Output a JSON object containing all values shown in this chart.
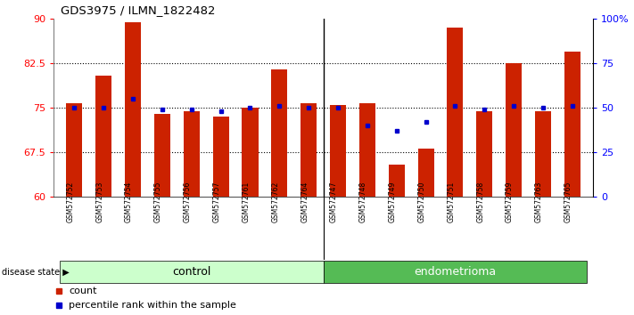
{
  "title": "GDS3975 / ILMN_1822482",
  "samples": [
    "GSM572752",
    "GSM572753",
    "GSM572754",
    "GSM572755",
    "GSM572756",
    "GSM572757",
    "GSM572761",
    "GSM572762",
    "GSM572764",
    "GSM572747",
    "GSM572748",
    "GSM572749",
    "GSM572750",
    "GSM572751",
    "GSM572758",
    "GSM572759",
    "GSM572763",
    "GSM572765"
  ],
  "bar_heights": [
    75.8,
    80.5,
    89.5,
    74.0,
    74.5,
    73.5,
    75.0,
    81.5,
    75.8,
    75.5,
    75.8,
    65.5,
    68.2,
    88.5,
    74.5,
    82.5,
    74.5,
    84.5
  ],
  "percentile_ranks_pct": [
    50,
    50,
    55,
    49,
    49,
    48,
    50,
    51,
    50,
    50,
    40,
    37,
    42,
    51,
    49,
    51,
    50,
    51
  ],
  "control_count": 9,
  "endometrioma_count": 9,
  "bar_color": "#cc2200",
  "dot_color": "#0000cc",
  "bar_bottom": 60,
  "ylim_left": [
    60,
    90
  ],
  "ylim_right": [
    0,
    100
  ],
  "yticks_left": [
    60,
    67.5,
    75,
    82.5,
    90
  ],
  "yticks_right": [
    0,
    25,
    50,
    75,
    100
  ],
  "ytick_labels_left": [
    "60",
    "67.5",
    "75",
    "82.5",
    "90"
  ],
  "ytick_labels_right": [
    "0",
    "25",
    "50",
    "75",
    "100%"
  ],
  "gridlines": [
    67.5,
    75,
    82.5
  ],
  "control_label": "control",
  "endometrioma_label": "endometrioma",
  "disease_state_label": "disease state",
  "legend_count_label": "count",
  "legend_pct_label": "percentile rank within the sample",
  "control_bg": "#ccffcc",
  "endo_bg": "#55bb55",
  "plot_bg": "#ffffff",
  "bar_width": 0.55
}
